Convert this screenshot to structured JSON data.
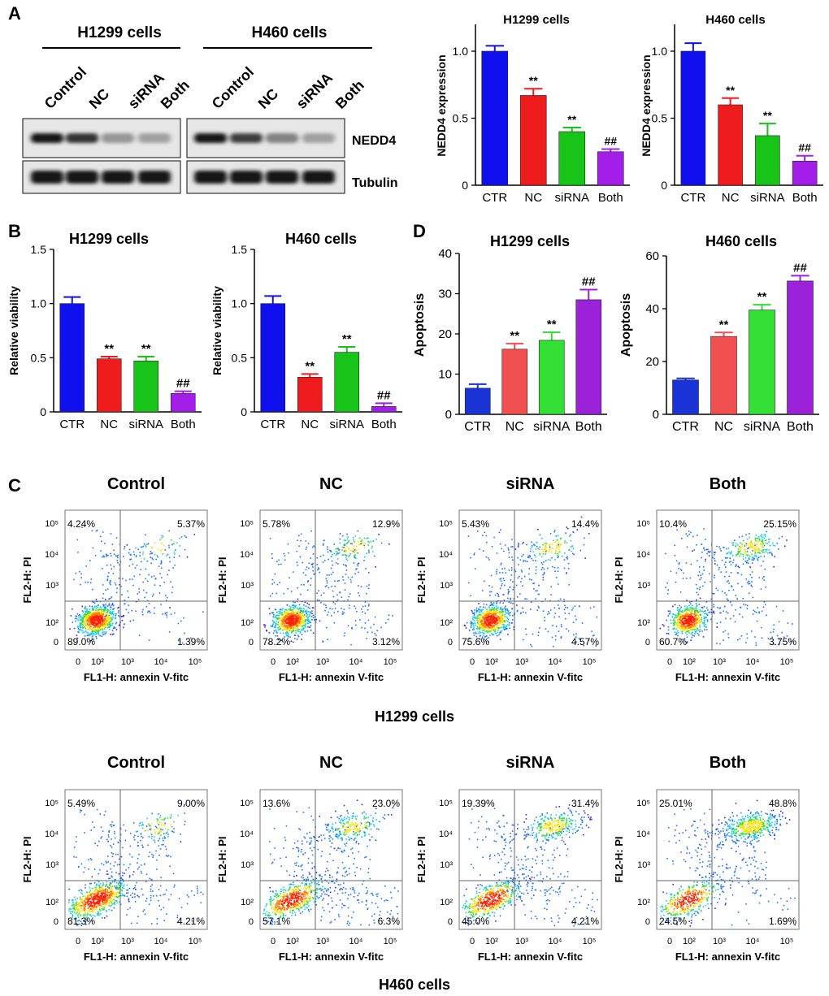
{
  "figure": {
    "panel_letters": [
      "A",
      "B",
      "C",
      "D"
    ]
  },
  "colors": {
    "blue": "#1010ee",
    "red": "#ee1c1c",
    "green": "#17c417",
    "purple": "#a31ee8",
    "d_blue": "#1a33d6",
    "d_red": "#f05050",
    "d_green": "#33e033",
    "d_purple": "#9b22d8"
  },
  "western_blot": {
    "groups": [
      {
        "title": "H1299 cells",
        "lanes": [
          "Control",
          "NC",
          "siRNA",
          "Both"
        ],
        "nedd4_intensity": [
          1.0,
          0.85,
          0.35,
          0.3
        ],
        "tubulin_intensity": [
          1.0,
          1.0,
          1.0,
          1.0
        ]
      },
      {
        "title": "H460 cells",
        "lanes": [
          "Control",
          "NC",
          "siRNA",
          "Both"
        ],
        "nedd4_intensity": [
          1.0,
          0.8,
          0.45,
          0.3
        ],
        "tubulin_intensity": [
          1.0,
          1.0,
          1.0,
          1.0
        ]
      }
    ],
    "row_labels": [
      "NEDD4",
      "Tubulin"
    ]
  },
  "chart_data": [
    {
      "id": "a1",
      "type": "bar",
      "title": "H1299 cells",
      "ylabel": "NEDD4 expression",
      "xlabel": "",
      "categories": [
        "CTR",
        "NC",
        "siRNA",
        "Both"
      ],
      "values": [
        1.0,
        0.67,
        0.4,
        0.25
      ],
      "errors": [
        0.04,
        0.05,
        0.03,
        0.02
      ],
      "annotations": [
        "",
        "**",
        "**",
        "##"
      ],
      "ylim": [
        0,
        1.2
      ],
      "yticks": [
        0,
        0.5,
        1.0
      ],
      "ytick_labels": [
        "0",
        "0.5",
        "1.0"
      ],
      "colors": [
        "#1010ee",
        "#ee1c1c",
        "#17c417",
        "#a31ee8"
      ]
    },
    {
      "id": "a2",
      "type": "bar",
      "title": "H460 cells",
      "ylabel": "NEDD4 expression",
      "xlabel": "",
      "categories": [
        "CTR",
        "NC",
        "siRNA",
        "Both"
      ],
      "values": [
        1.0,
        0.6,
        0.37,
        0.18
      ],
      "errors": [
        0.06,
        0.05,
        0.09,
        0.04
      ],
      "annotations": [
        "",
        "**",
        "**",
        "##"
      ],
      "ylim": [
        0,
        1.2
      ],
      "yticks": [
        0,
        0.5,
        1.0
      ],
      "ytick_labels": [
        "0",
        "0.5",
        "1.0"
      ],
      "colors": [
        "#1010ee",
        "#ee1c1c",
        "#17c417",
        "#a31ee8"
      ]
    },
    {
      "id": "b1",
      "type": "bar",
      "title": "H1299 cells",
      "ylabel": "Relative viability",
      "xlabel": "",
      "categories": [
        "CTR",
        "NC",
        "siRNA",
        "Both"
      ],
      "values": [
        1.0,
        0.49,
        0.47,
        0.17
      ],
      "errors": [
        0.06,
        0.02,
        0.04,
        0.02
      ],
      "annotations": [
        "",
        "**",
        "**",
        "##"
      ],
      "ylim": [
        0,
        1.5
      ],
      "yticks": [
        0,
        0.5,
        1.0,
        1.5
      ],
      "ytick_labels": [
        "0",
        "0.5",
        "1.0",
        "1.5"
      ],
      "colors": [
        "#1010ee",
        "#ee1c1c",
        "#17c417",
        "#a31ee8"
      ]
    },
    {
      "id": "b2",
      "type": "bar",
      "title": "H460 cells",
      "ylabel": "Relative viability",
      "xlabel": "",
      "categories": [
        "CTR",
        "NC",
        "siRNA",
        "Both"
      ],
      "values": [
        1.0,
        0.32,
        0.55,
        0.05
      ],
      "errors": [
        0.07,
        0.03,
        0.05,
        0.03
      ],
      "annotations": [
        "",
        "**",
        "**",
        "##"
      ],
      "ylim": [
        0,
        1.5
      ],
      "yticks": [
        0,
        0.5,
        1.0,
        1.5
      ],
      "ytick_labels": [
        "0",
        "0.5",
        "1.0",
        "1.5"
      ],
      "colors": [
        "#1010ee",
        "#ee1c1c",
        "#17c417",
        "#a31ee8"
      ]
    },
    {
      "id": "d1",
      "type": "bar",
      "title": "H1299 cells",
      "ylabel": "Apoptosis",
      "xlabel": "",
      "categories": [
        "CTR",
        "NC",
        "siRNA",
        "Both"
      ],
      "values": [
        6.5,
        16.2,
        18.4,
        28.5
      ],
      "errors": [
        1.0,
        1.4,
        2.0,
        2.5
      ],
      "annotations": [
        "",
        "**",
        "**",
        "##"
      ],
      "ylim": [
        0,
        40
      ],
      "yticks": [
        0,
        10,
        20,
        30,
        40
      ],
      "ytick_labels": [
        "0",
        "10",
        "20",
        "30",
        "40"
      ],
      "colors": [
        "#1a33d6",
        "#f05050",
        "#33e033",
        "#9b22d8"
      ]
    },
    {
      "id": "d2",
      "type": "bar",
      "title": "H460 cells",
      "ylabel": "Apoptosis",
      "xlabel": "",
      "categories": [
        "CTR",
        "NC",
        "siRNA",
        "Both"
      ],
      "values": [
        13.0,
        29.5,
        39.5,
        50.5
      ],
      "errors": [
        0.6,
        1.5,
        2.0,
        2.0
      ],
      "annotations": [
        "",
        "**",
        "**",
        "##"
      ],
      "ylim": [
        0,
        60
      ],
      "yticks": [
        0,
        20,
        40,
        60
      ],
      "ytick_labels": [
        "0",
        "20",
        "40",
        "60"
      ],
      "colors": [
        "#1a33d6",
        "#f05050",
        "#33e033",
        "#9b22d8"
      ]
    },
    {
      "id": "c",
      "type": "scatter",
      "xlabel": "FL1-H: annexin V-fitc",
      "ylabel": "FL2-H: PI",
      "axis_tick_labels": [
        "0",
        "10²",
        "10³",
        "10⁴",
        "10⁵"
      ],
      "rows": [
        {
          "caption": "H1299 cells",
          "plots": [
            {
              "title": "Control",
              "quadrants": [
                "4.24%",
                "5.37%",
                "89.0%",
                "1.39%"
              ],
              "late_apoptotic_percent": 5.37,
              "early_apoptotic_percent": 1.39
            },
            {
              "title": "NC",
              "quadrants": [
                "5.78%",
                "12.9%",
                "78.2%",
                "3.12%"
              ],
              "late_apoptotic_percent": 12.9,
              "early_apoptotic_percent": 3.12
            },
            {
              "title": "siRNA",
              "quadrants": [
                "5.43%",
                "14.4%",
                "75.6%",
                "4.57%"
              ],
              "late_apoptotic_percent": 14.4,
              "early_apoptotic_percent": 4.57
            },
            {
              "title": "Both",
              "quadrants": [
                "10.4%",
                "25.15%",
                "60.7%",
                "3.75%"
              ],
              "late_apoptotic_percent": 25.15,
              "early_apoptotic_percent": 3.75
            }
          ]
        },
        {
          "caption": "H460 cells",
          "plots": [
            {
              "title": "Control",
              "quadrants": [
                "5.49%",
                "9.00%",
                "81.3%",
                "4.21%"
              ],
              "late_apoptotic_percent": 9.0,
              "early_apoptotic_percent": 4.21
            },
            {
              "title": "NC",
              "quadrants": [
                "13.6%",
                "23.0%",
                "57.1%",
                "6.3%"
              ],
              "late_apoptotic_percent": 23.0,
              "early_apoptotic_percent": 6.3
            },
            {
              "title": "siRNA",
              "quadrants": [
                "19.39%",
                "31.4%",
                "45.0%",
                "4.21%"
              ],
              "late_apoptotic_percent": 31.4,
              "early_apoptotic_percent": 4.21
            },
            {
              "title": "Both",
              "quadrants": [
                "25.01%",
                "48.8%",
                "24.5%",
                "1.69%"
              ],
              "late_apoptotic_percent": 48.8,
              "early_apoptotic_percent": 1.69
            }
          ]
        }
      ]
    }
  ]
}
